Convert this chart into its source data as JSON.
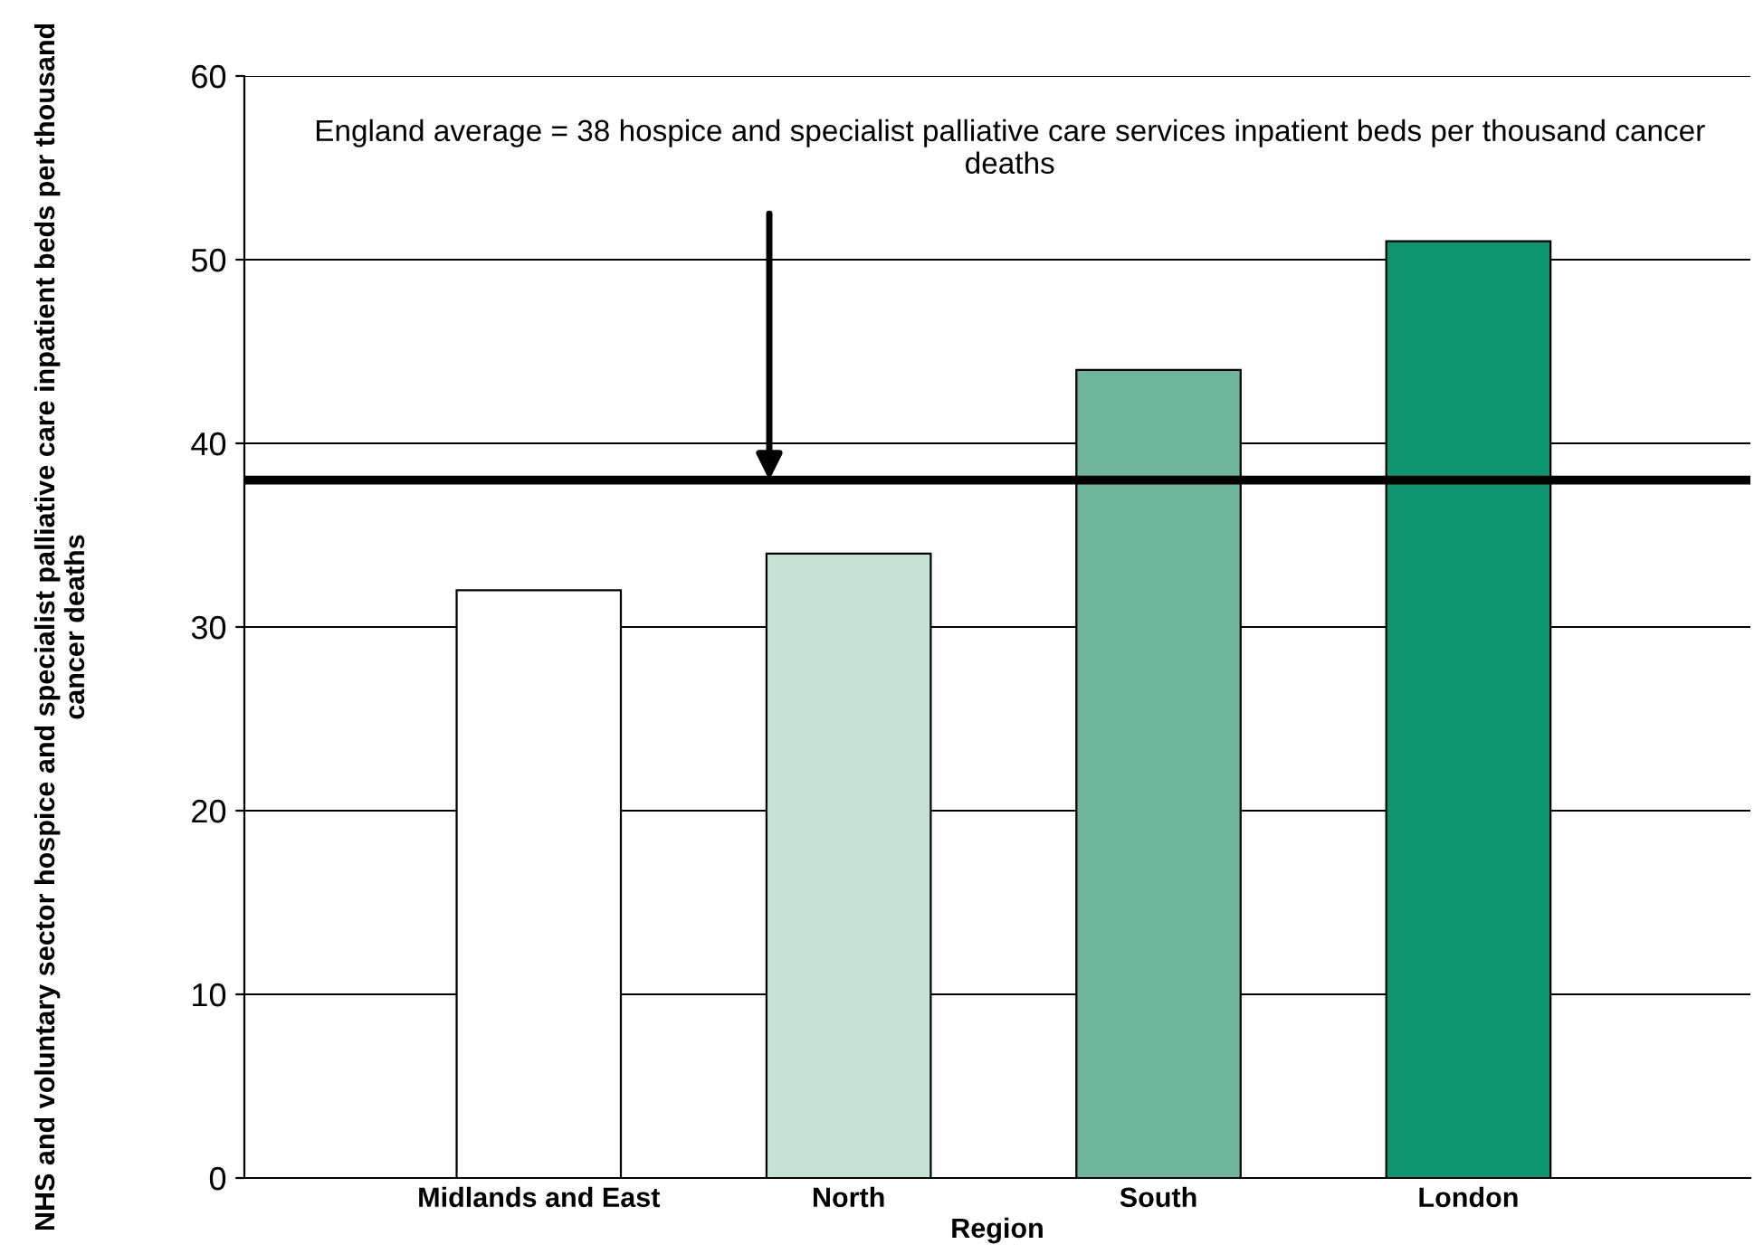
{
  "chart_data": {
    "type": "bar",
    "xlabel": "Region",
    "ylabel": "NHS and voluntary sector hospice and specialist palliative care inpatient beds per thousand cancer deaths",
    "categories": [
      "Midlands and East",
      "North",
      "South",
      "London"
    ],
    "values": [
      32,
      34,
      44,
      51
    ],
    "colors": [
      "#ffffff",
      "#c5e3d5",
      "#6fb59c",
      "#0f9470"
    ],
    "ylim": [
      0,
      60
    ],
    "yticks": [
      0,
      10,
      20,
      30,
      40,
      50,
      60
    ],
    "grid": "y",
    "ref_lines": [
      {
        "axis": "y",
        "value": 38,
        "label": "England average = 38 hospice and specialist palliative care services inpatient beds per thousand cancer deaths",
        "color": "#000000"
      }
    ]
  }
}
